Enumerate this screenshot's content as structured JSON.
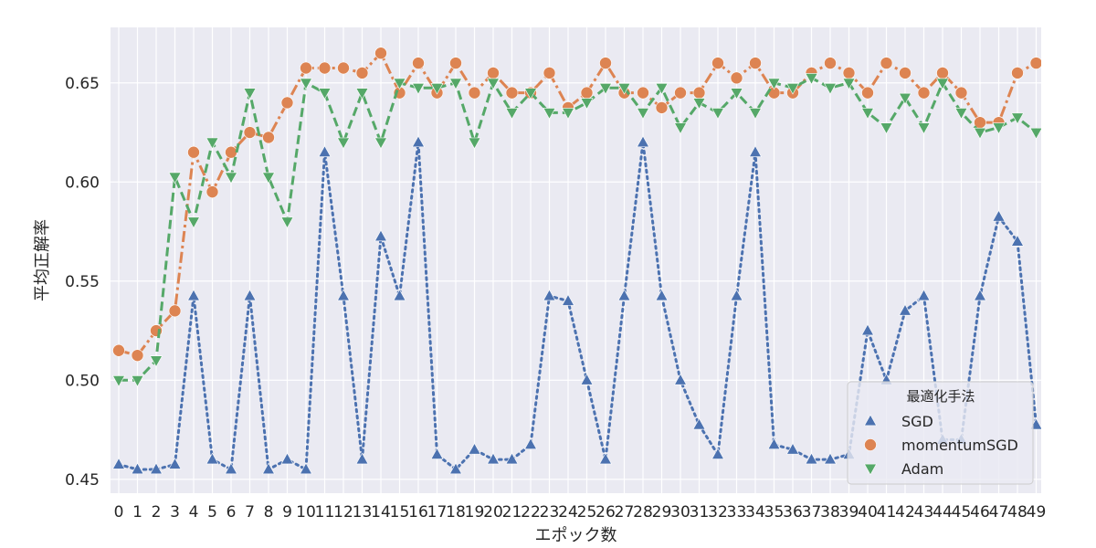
{
  "chart_data": {
    "type": "line",
    "xlabel": "エポック数",
    "ylabel": "平均正解率",
    "ylim": [
      0.443,
      0.678
    ],
    "yticks": [
      0.45,
      0.5,
      0.55,
      0.6,
      0.65
    ],
    "ytick_labels": [
      "0.45",
      "0.50",
      "0.55",
      "0.60",
      "0.65"
    ],
    "x": [
      0,
      1,
      2,
      3,
      4,
      5,
      6,
      7,
      8,
      9,
      10,
      11,
      12,
      13,
      14,
      15,
      16,
      17,
      18,
      19,
      20,
      21,
      22,
      23,
      24,
      25,
      26,
      27,
      28,
      29,
      30,
      31,
      32,
      33,
      34,
      35,
      36,
      37,
      38,
      39,
      40,
      41,
      42,
      43,
      44,
      45,
      46,
      47,
      48,
      49
    ],
    "x_tick_labels": [
      "0",
      "1",
      "2",
      "3",
      "4",
      "5",
      "6",
      "7",
      "8",
      "9",
      "10",
      "11",
      "12",
      "13",
      "14",
      "15",
      "16",
      "17",
      "18",
      "19",
      "20",
      "21",
      "22",
      "23",
      "24",
      "25",
      "26",
      "27",
      "28",
      "29",
      "30",
      "31",
      "32",
      "33",
      "34",
      "35",
      "36",
      "37",
      "38",
      "39",
      "40",
      "41",
      "42",
      "43",
      "44",
      "45",
      "46",
      "47",
      "48",
      "49"
    ],
    "grid": true,
    "legend": {
      "title": "最適化手法",
      "placement": "lower-right"
    },
    "series": [
      {
        "name": "SGD",
        "color": "#4c72b0",
        "marker": "triangle-up",
        "linestyle": "dotted",
        "values": [
          0.4575,
          0.455,
          0.455,
          0.4575,
          0.5425,
          0.46,
          0.455,
          0.5425,
          0.455,
          0.46,
          0.455,
          0.615,
          0.5425,
          0.46,
          0.5725,
          0.5425,
          0.62,
          0.4625,
          0.455,
          0.465,
          0.46,
          0.46,
          0.4675,
          0.5425,
          0.54,
          0.5,
          0.46,
          0.5425,
          0.62,
          0.5425,
          0.5,
          0.4775,
          0.4625,
          0.5425,
          0.615,
          0.4675,
          0.465,
          0.46,
          0.46,
          0.4625,
          0.525,
          0.5,
          0.535,
          0.5425,
          0.47,
          0.47,
          0.5425,
          0.5825,
          0.57,
          0.4775
        ]
      },
      {
        "name": "momentumSGD",
        "color": "#dd8452",
        "marker": "circle",
        "linestyle": "dashdot",
        "values": [
          0.515,
          0.5125,
          0.525,
          0.535,
          0.615,
          0.595,
          0.615,
          0.625,
          0.6225,
          0.64,
          0.6575,
          0.6575,
          0.6575,
          0.655,
          0.665,
          0.645,
          0.66,
          0.645,
          0.66,
          0.645,
          0.655,
          0.645,
          0.645,
          0.655,
          0.6375,
          0.645,
          0.66,
          0.645,
          0.645,
          0.6375,
          0.645,
          0.645,
          0.66,
          0.6525,
          0.66,
          0.645,
          0.645,
          0.655,
          0.66,
          0.655,
          0.645,
          0.66,
          0.655,
          0.645,
          0.655,
          0.645,
          0.63,
          0.63,
          0.655,
          0.66
        ]
      },
      {
        "name": "Adam",
        "color": "#55a868",
        "marker": "triangle-down",
        "linestyle": "dashed",
        "values": [
          0.5,
          0.5,
          0.51,
          0.6025,
          0.58,
          0.62,
          0.6025,
          0.645,
          0.6025,
          0.58,
          0.65,
          0.645,
          0.62,
          0.645,
          0.62,
          0.65,
          0.6475,
          0.6475,
          0.65,
          0.62,
          0.65,
          0.635,
          0.645,
          0.635,
          0.635,
          0.64,
          0.6475,
          0.6475,
          0.635,
          0.6475,
          0.6275,
          0.64,
          0.635,
          0.645,
          0.635,
          0.65,
          0.6475,
          0.6525,
          0.6475,
          0.65,
          0.635,
          0.6275,
          0.6425,
          0.6275,
          0.65,
          0.635,
          0.625,
          0.6275,
          0.6325,
          0.625
        ]
      }
    ]
  }
}
